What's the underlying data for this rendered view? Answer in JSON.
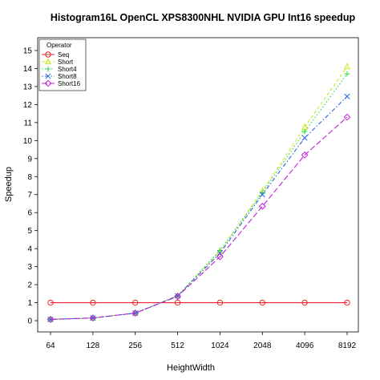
{
  "chart_data": {
    "type": "line",
    "title": "Histogram16L OpenCL XPS8300NHL NVIDIA GPU Int16 speedup",
    "xlabel": "HeightWidth",
    "ylabel": "Speedup",
    "categories": [
      "64",
      "128",
      "256",
      "512",
      "1024",
      "2048",
      "4096",
      "8192"
    ],
    "ylim": [
      0,
      15
    ],
    "yticks": [
      0,
      1,
      2,
      3,
      4,
      5,
      6,
      7,
      8,
      9,
      10,
      11,
      12,
      13,
      14,
      15
    ],
    "legend": {
      "title": "Operator",
      "position": "top-left"
    },
    "grid": false,
    "series": [
      {
        "name": "Seq",
        "color": "#e8262a",
        "marker": "circle",
        "dash": "solid",
        "values": [
          1,
          1,
          1,
          1,
          1,
          1,
          1,
          1
        ]
      },
      {
        "name": "Short",
        "color": "#c8e820",
        "marker": "triangle",
        "dash": "dashed",
        "values": [
          0.07,
          0.15,
          0.42,
          1.38,
          3.85,
          7.2,
          10.75,
          14.1
        ]
      },
      {
        "name": "Short4",
        "color": "#24d84a",
        "marker": "plus",
        "dash": "dotted",
        "values": [
          0.07,
          0.15,
          0.42,
          1.38,
          3.9,
          7.1,
          10.5,
          13.7
        ]
      },
      {
        "name": "Short8",
        "color": "#2a64e0",
        "marker": "x",
        "dash": "dotdash",
        "values": [
          0.07,
          0.15,
          0.42,
          1.38,
          3.75,
          7.0,
          10.15,
          12.45
        ]
      },
      {
        "name": "Short16",
        "color": "#c020d8",
        "marker": "diamond",
        "dash": "longdash",
        "values": [
          0.07,
          0.15,
          0.42,
          1.35,
          3.55,
          6.35,
          9.2,
          11.3
        ]
      }
    ]
  }
}
